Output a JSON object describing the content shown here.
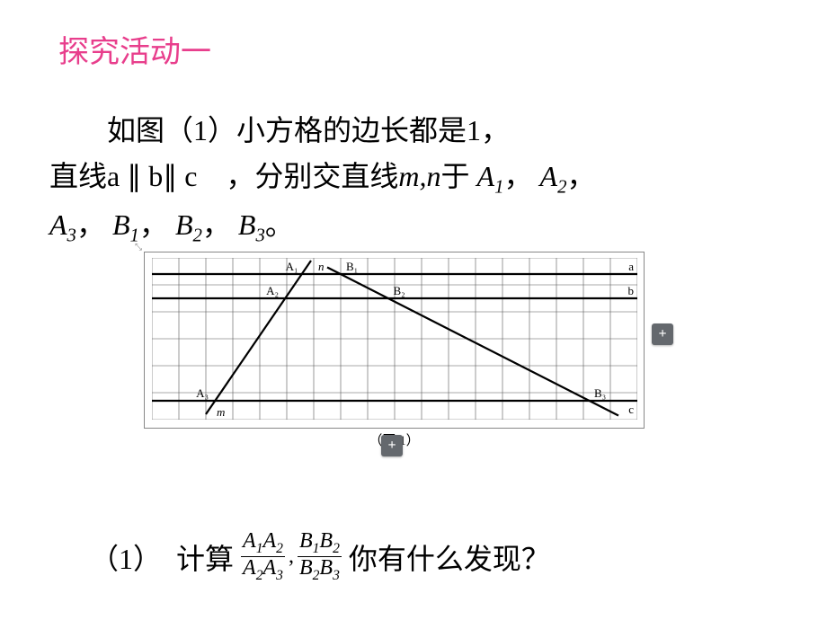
{
  "title": "探究活动一",
  "body": {
    "line1_pre": "如图（1）小方格的边长都是1，",
    "line2_pre": "直线a ∥ b∥ c　，分别交直线",
    "mn": "m,n",
    "line2_post": "于 ",
    "A1": "A",
    "A1s": "1",
    "sep": "，",
    "A2": "A",
    "A2s": "2",
    "A3": "A",
    "A3s": "3",
    "B1": "B",
    "B1s": "1",
    "B2": "B",
    "B2s": "2",
    "B3": "B",
    "B3s": "3",
    "period": "。"
  },
  "figure": {
    "caption": "（图 1）",
    "grid": {
      "cols": 18,
      "rows": 6,
      "cell": 30,
      "stroke": "#555555",
      "stroke_width": 0.6
    },
    "lines": {
      "a_y": 0.6,
      "b_y": 1.5,
      "c_y": 5.3,
      "heavy_stroke": "#000000",
      "heavy_width": 2.2
    },
    "points": {
      "A1": {
        "x": 5.55,
        "y": 0.6,
        "label": "A₁"
      },
      "B1": {
        "x": 7.0,
        "y": 0.6,
        "label": "B₁"
      },
      "A2": {
        "x": 4.9,
        "y": 1.5,
        "label": "A₂"
      },
      "B2": {
        "x": 8.75,
        "y": 1.5,
        "label": "B₂"
      },
      "A3": {
        "x": 2.3,
        "y": 5.3,
        "label": "A₃"
      },
      "B3": {
        "x": 16.2,
        "y": 5.3,
        "label": "B₃"
      }
    },
    "labels": {
      "a": "a",
      "b": "b",
      "c": "c",
      "m": "m",
      "n": "n"
    },
    "line_m": {
      "x1": 2.0,
      "y1": 5.8,
      "x2": 5.9,
      "y2": 0.1
    },
    "line_n": {
      "x1": 6.5,
      "y1": 0.35,
      "x2": 17.3,
      "y2": 5.85
    }
  },
  "question": {
    "prefix": "（1）　计算",
    "frac1_num_a": "A",
    "frac1_num_as": "1",
    "frac1_num_b": "A",
    "frac1_num_bs": "2",
    "frac1_den_a": "A",
    "frac1_den_as": "2",
    "frac1_den_b": "A",
    "frac1_den_bs": "3",
    "comma": ",",
    "frac2_num_a": "B",
    "frac2_num_as": "1",
    "frac2_num_b": "B",
    "frac2_num_bs": "2",
    "frac2_den_a": "B",
    "frac2_den_as": "2",
    "frac2_den_b": "B",
    "frac2_den_bs": "3",
    "suffix": "你有什么发现？"
  },
  "plus": "+",
  "colors": {
    "title": "#e83e8c",
    "text": "#000000",
    "plus_bg": "#64686d"
  }
}
